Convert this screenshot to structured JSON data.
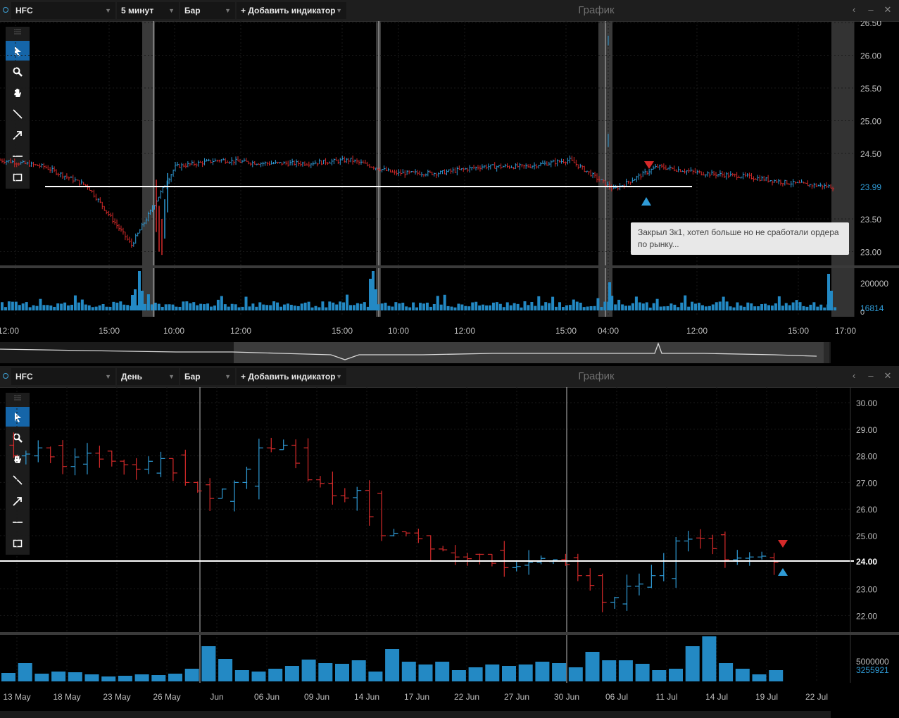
{
  "top": {
    "symbol": "HFC",
    "interval": "5 минут",
    "chart_type": "Бар",
    "add_indicator": "+ Добавить индикатор",
    "title": "График",
    "price_labels": [
      "26.50",
      "26.00",
      "25.50",
      "25.00",
      "24.50",
      "23.50",
      "23.00"
    ],
    "last_price": "23.99",
    "volume_labels": [
      "200000",
      "16814",
      "0"
    ],
    "time_labels": [
      "12:00",
      "15:00",
      "10:00",
      "12:00",
      "15:00",
      "10:00",
      "12:00",
      "15:00",
      "04:00",
      "12:00",
      "15:00",
      "17:00"
    ],
    "note": "Закрыл 3к1, хотел больше но не сработали ордера по рынку..."
  },
  "bottom": {
    "symbol": "HFC",
    "interval": "День",
    "chart_type": "Бар",
    "add_indicator": "+ Добавить индикатор",
    "title": "График",
    "price_labels": [
      "30.00",
      "29.00",
      "28.00",
      "27.00",
      "26.00",
      "25.00",
      "23.00",
      "22.00"
    ],
    "level_price": "24.00",
    "volume_labels": [
      "5000000",
      "3255921"
    ],
    "date_labels": [
      "13 May",
      "18 May",
      "23 May",
      "26 May",
      "Jun",
      "06 Jun",
      "09 Jun",
      "14 Jun",
      "17 Jun",
      "22 Jun",
      "27 Jun",
      "30 Jun",
      "06 Jul",
      "11 Jul",
      "14 Jul",
      "19 Jul",
      "22 Jul"
    ]
  },
  "tools": [
    "cursor-icon",
    "zoom-icon",
    "hand-icon",
    "line-icon",
    "arrow-icon",
    "hline-icon",
    "rect-icon"
  ],
  "colors": {
    "up": "#2f9bd6",
    "down": "#d52a2a",
    "volume": "#2389c4",
    "level": "#ffffff",
    "background": "#000000"
  },
  "chart_data": [
    {
      "type": "bar",
      "description_series": "HFC 5-minute OHLC",
      "ylim": [
        22.8,
        26.5
      ],
      "horizontal_level": 24.0,
      "x": [
        "12:00",
        "15:00",
        "10:00",
        "12:00",
        "15:00",
        "10:00",
        "12:00",
        "15:00",
        "04:00",
        "12:00",
        "15:00",
        "17:00"
      ],
      "close_path": [
        24.4,
        24.3,
        24.0,
        23.1,
        24.3,
        24.4,
        24.35,
        24.35,
        24.4,
        24.2,
        24.2,
        24.3,
        24.3,
        24.4,
        23.95,
        24.3,
        24.2,
        24.15,
        24.05,
        23.99
      ],
      "last": 23.99
    },
    {
      "type": "bar",
      "description_series": "HFC daily OHLC",
      "ylim": [
        21.6,
        30.2
      ],
      "horizontal_level": 24.0,
      "categories": [
        "13 May",
        "18 May",
        "23 May",
        "26 May",
        "Jun",
        "06 Jun",
        "09 Jun",
        "14 Jun",
        "17 Jun",
        "22 Jun",
        "27 Jun",
        "30 Jun",
        "06 Jul",
        "11 Jul",
        "14 Jul",
        "19 Jul",
        "22 Jul"
      ],
      "closes": [
        28.0,
        28.3,
        27.6,
        28.1,
        27.8,
        27.5,
        27.9,
        27.0,
        26.4,
        27.0,
        28.3,
        28.4,
        27.1,
        26.5,
        26.7,
        25.0,
        25.1,
        24.5,
        24.2,
        24.3,
        23.8,
        24.0,
        24.1,
        23.5,
        22.5,
        23.1,
        23.5,
        24.8,
        24.9,
        24.1,
        24.2,
        24.0
      ],
      "volume_last": 3255921
    }
  ]
}
